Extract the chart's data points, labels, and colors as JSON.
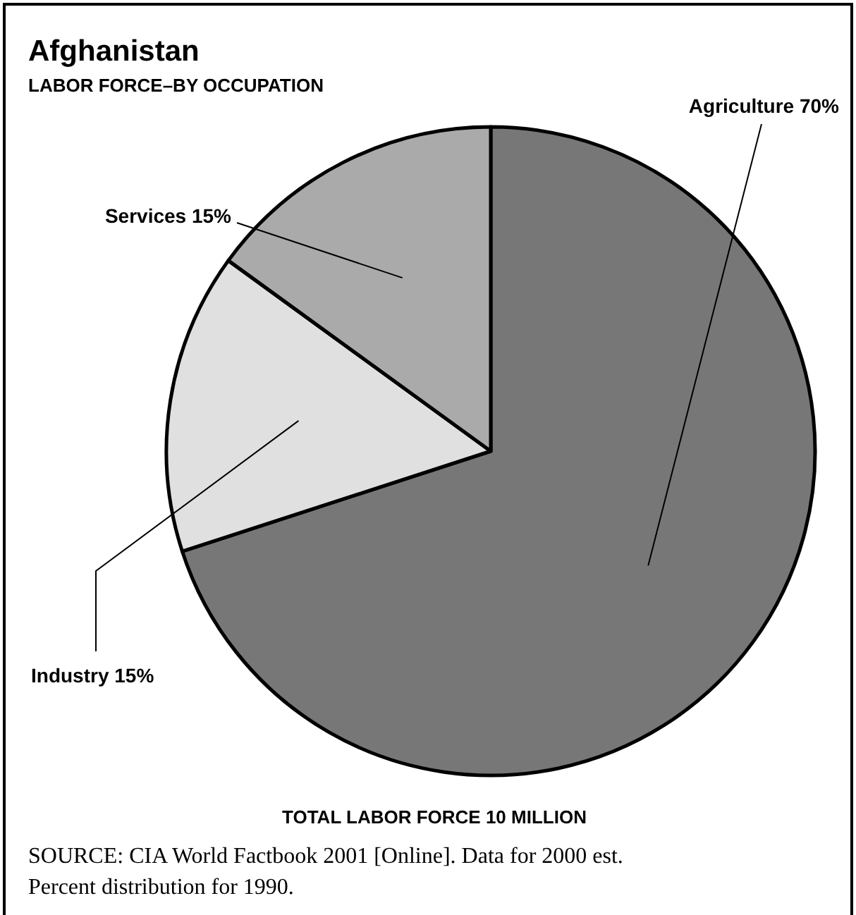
{
  "chart_data": {
    "type": "pie",
    "title": "Afghanistan",
    "subtitle": "LABOR FORCE–BY OCCUPATION",
    "categories": [
      "Agriculture",
      "Industry",
      "Services"
    ],
    "values": [
      70,
      15,
      15
    ],
    "value_labels": [
      "70%",
      "15%",
      "15%"
    ],
    "colors": [
      "#777777",
      "#e0e0e0",
      "#aaaaaa"
    ],
    "legend": false,
    "annotations": [
      "TOTAL LABOR FORCE 10 MILLION",
      "SOURCE: CIA World Factbook 2001 [Online]. Data for 2000 est. Percent distribution for 1990."
    ]
  }
}
